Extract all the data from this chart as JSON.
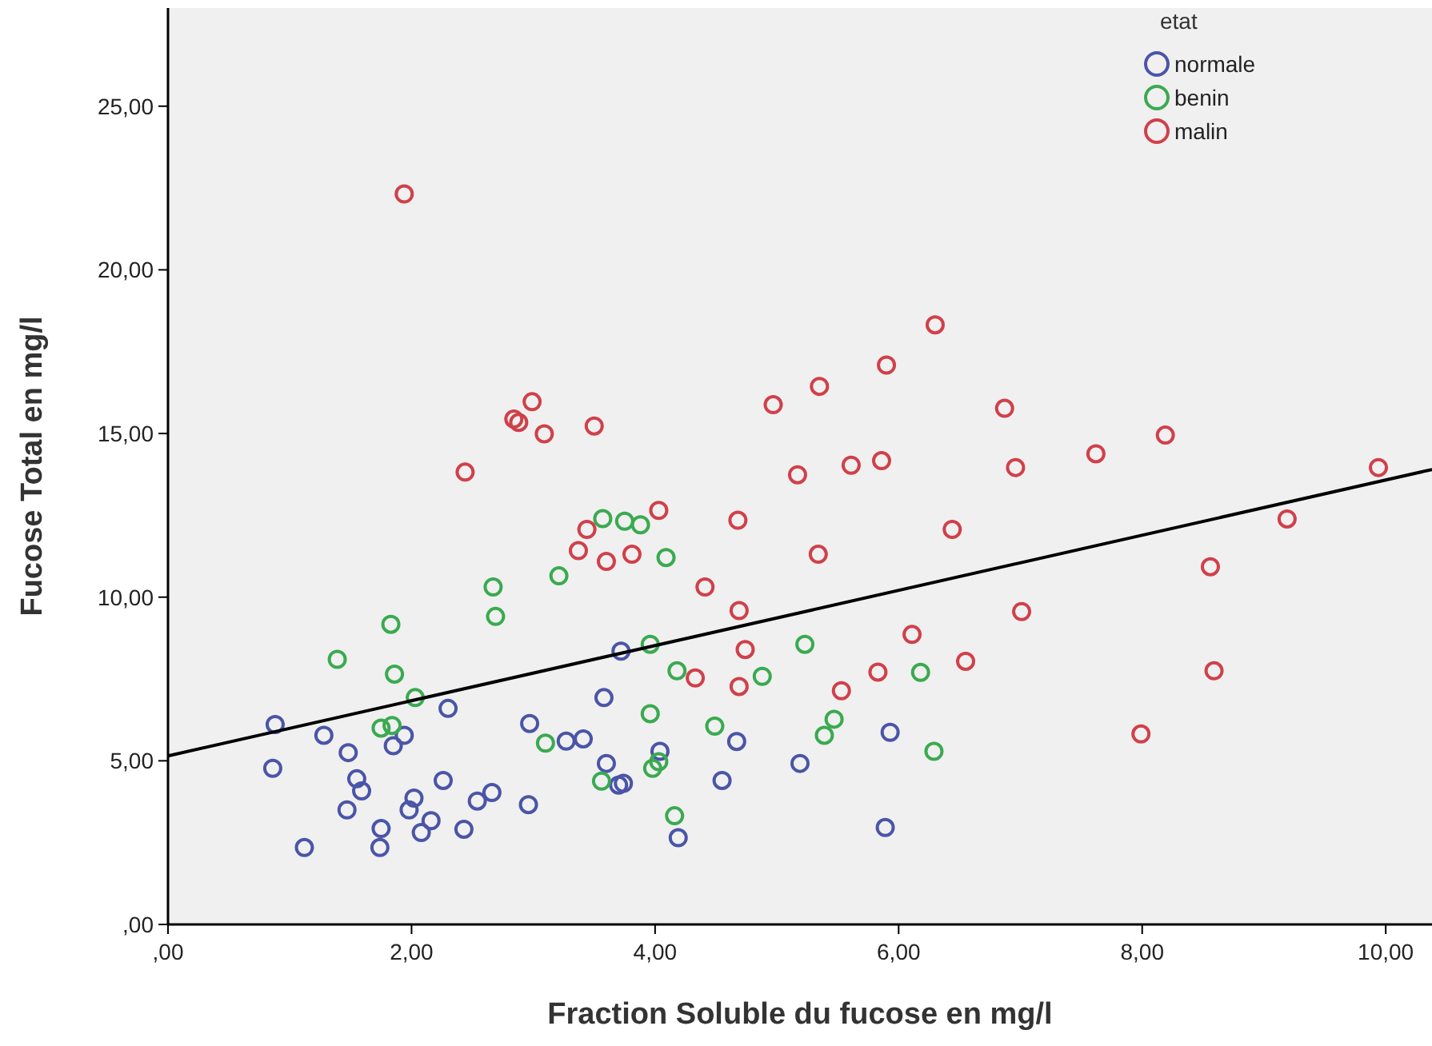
{
  "chart_data": {
    "type": "scatter",
    "xlabel": "Fraction Soluble du fucose en mg/l",
    "ylabel": "Fucose Total en mg/l",
    "legend_title": "etat",
    "legend": "top right",
    "marker": "circle",
    "grid": false,
    "xlim": [
      0,
      10.38
    ],
    "ylim": [
      0,
      28
    ],
    "xticks": [
      {
        "value": 0,
        "label": ",00"
      },
      {
        "value": 2,
        "label": "2,00"
      },
      {
        "value": 4,
        "label": "4,00"
      },
      {
        "value": 6,
        "label": "6,00"
      },
      {
        "value": 8,
        "label": "8,00"
      },
      {
        "value": 10,
        "label": "10,00"
      }
    ],
    "yticks": [
      {
        "value": 0,
        "label": ",00"
      },
      {
        "value": 5,
        "label": "5,00"
      },
      {
        "value": 10,
        "label": "10,00"
      },
      {
        "value": 15,
        "label": "15,00"
      },
      {
        "value": 20,
        "label": "20,00"
      },
      {
        "value": 25,
        "label": "25,00"
      }
    ],
    "series": [
      {
        "name": "normale",
        "color": "#4a55a8",
        "x": [
          0.88,
          0.86,
          1.28,
          1.48,
          1.55,
          1.59,
          1.47,
          1.12,
          1.75,
          1.74,
          1.85,
          1.94,
          2.02,
          1.98,
          2.16,
          2.08,
          2.26,
          2.3,
          2.43,
          2.54,
          2.66,
          2.96,
          2.97,
          3.27,
          3.72,
          3.58,
          3.41,
          3.6,
          3.74,
          3.7,
          4.04,
          4.19,
          4.55,
          4.67,
          5.19,
          5.93,
          5.89
        ],
        "values": [
          6.11,
          4.77,
          5.78,
          5.25,
          4.45,
          4.08,
          3.5,
          2.35,
          2.93,
          2.35,
          5.46,
          5.78,
          3.86,
          3.5,
          3.17,
          2.81,
          4.4,
          6.6,
          2.91,
          3.77,
          4.03,
          3.66,
          6.14,
          5.6,
          8.35,
          6.93,
          5.67,
          4.92,
          4.31,
          4.26,
          5.29,
          2.65,
          4.4,
          5.59,
          4.92,
          5.87,
          2.96
        ]
      },
      {
        "name": "benin",
        "color": "#3aaa50",
        "x": [
          1.39,
          1.83,
          1.86,
          2.03,
          1.75,
          1.84,
          2.67,
          2.69,
          3.21,
          3.1,
          4.09,
          3.96,
          4.18,
          3.96,
          4.49,
          4.88,
          5.23,
          6.18,
          5.47,
          5.39,
          6.29,
          4.03,
          3.98,
          3.56,
          4.16,
          3.57,
          3.75,
          3.88
        ],
        "values": [
          8.1,
          9.17,
          7.65,
          6.93,
          6.0,
          6.08,
          10.31,
          9.41,
          10.65,
          5.54,
          11.21,
          8.56,
          7.75,
          6.44,
          6.06,
          7.58,
          8.56,
          7.7,
          6.27,
          5.78,
          5.29,
          4.97,
          4.77,
          4.38,
          3.32,
          12.4,
          12.32,
          12.21
        ]
      },
      {
        "name": "malin",
        "color": "#d0404a",
        "x": [
          1.94,
          2.99,
          2.84,
          2.88,
          3.09,
          3.5,
          2.44,
          3.44,
          4.03,
          6.3,
          5.9,
          5.35,
          4.97,
          6.87,
          8.19,
          7.62,
          9.94,
          5.17,
          5.61,
          5.86,
          6.96,
          4.68,
          5.34,
          6.44,
          4.41,
          4.69,
          7.01,
          9.19,
          8.56,
          4.74,
          4.33,
          4.69,
          6.11,
          5.83,
          6.55,
          5.53,
          8.59,
          7.99,
          3.37,
          3.6,
          3.81
        ],
        "values": [
          22.32,
          15.97,
          15.44,
          15.34,
          14.99,
          15.23,
          13.82,
          12.07,
          12.65,
          18.32,
          17.09,
          16.44,
          15.88,
          15.77,
          14.95,
          14.38,
          13.96,
          13.74,
          14.03,
          14.17,
          13.96,
          12.35,
          11.31,
          12.07,
          10.31,
          9.59,
          9.56,
          12.39,
          10.93,
          8.4,
          7.53,
          7.27,
          8.86,
          7.71,
          8.04,
          7.14,
          7.75,
          5.82,
          11.42,
          11.09,
          11.31
        ]
      },
      {
        "type": "line",
        "color": "#000000",
        "marker": "none",
        "x": [
          0,
          10.38
        ],
        "values": [
          5.15,
          13.9
        ]
      }
    ]
  }
}
